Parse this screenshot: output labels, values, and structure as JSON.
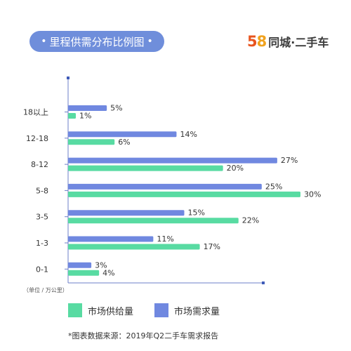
{
  "header": {
    "title": "里程供需分布比例图",
    "title_dot": "•",
    "brand_num_5": "5",
    "brand_num_8": "8",
    "brand_text": "同城·二手车"
  },
  "unit_label": "（单位 / 万公里）",
  "source": "*图表数据来源：2019年Q2二手车需求报告",
  "legend": [
    {
      "label": "市场供给量",
      "color": "#58dba2"
    },
    {
      "label": "市场需求量",
      "color": "#7088e0"
    }
  ],
  "chart_data": {
    "type": "bar",
    "orientation": "horizontal",
    "categories": [
      "18以上",
      "12-18",
      "8-12",
      "5-8",
      "3-5",
      "1-3",
      "0-1"
    ],
    "series": [
      {
        "name": "市场需求量",
        "color": "#7088e0",
        "values": [
          5,
          14,
          27,
          25,
          15,
          11,
          3
        ]
      },
      {
        "name": "市场供给量",
        "color": "#58dba2",
        "values": [
          1,
          6,
          20,
          30,
          22,
          17,
          4
        ]
      }
    ],
    "value_suffix": "%",
    "xlim": [
      0,
      30
    ]
  }
}
